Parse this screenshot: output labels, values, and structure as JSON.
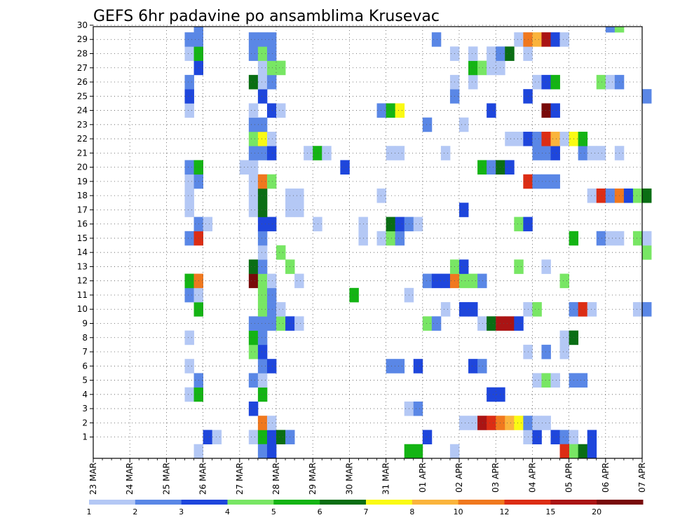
{
  "chart_data": {
    "type": "heatmap",
    "title": "GEFS 6hr padavine po ansamblima Krusevac",
    "xlabel": "",
    "ylabel": "",
    "x_ticks": [
      "23 MAR",
      "24 MAR",
      "25 MAR",
      "26 MAR",
      "27 MAR",
      "28 MAR",
      "29 MAR",
      "30 MAR",
      "31 MAR",
      "01 APR",
      "02 APR",
      "03 APR",
      "04 APR",
      "05 APR",
      "06 APR",
      "07 APR"
    ],
    "x_start": "2024-03-23 00Z",
    "x_step_hours": 6,
    "y_ticks": [
      1,
      2,
      3,
      4,
      5,
      6,
      7,
      8,
      9,
      10,
      11,
      12,
      13,
      14,
      15,
      16,
      17,
      18,
      19,
      20,
      21,
      22,
      23,
      24,
      25,
      26,
      27,
      28,
      29,
      30
    ],
    "grid": true,
    "colorbar": {
      "labels": [
        "1",
        "2",
        "3",
        "4",
        "5",
        "6",
        "7",
        "8",
        "10",
        "12",
        "15",
        "20"
      ],
      "colors": [
        "#b4c8f5",
        "#5a87e6",
        "#1e46dc",
        "#78e664",
        "#14b414",
        "#0a6e14",
        "#fafa14",
        "#fab43c",
        "#f0781e",
        "#dc2d14",
        "#aa1414",
        "#780a0a"
      ]
    },
    "cells": [
      [
        1,
        12,
        3
      ],
      [
        1,
        13,
        1
      ],
      [
        1,
        17,
        1
      ],
      [
        1,
        18,
        5
      ],
      [
        1,
        19,
        3
      ],
      [
        1,
        20,
        6
      ],
      [
        1,
        21,
        2
      ],
      [
        1,
        36,
        3
      ],
      [
        1,
        47,
        1
      ],
      [
        1,
        48,
        3
      ],
      [
        1,
        50,
        3
      ],
      [
        1,
        51,
        2
      ],
      [
        1,
        52,
        1
      ],
      [
        1,
        54,
        3
      ],
      [
        2,
        18,
        9
      ],
      [
        2,
        19,
        1
      ],
      [
        2,
        40,
        1
      ],
      [
        2,
        41,
        1
      ],
      [
        2,
        42,
        11
      ],
      [
        2,
        43,
        10
      ],
      [
        2,
        44,
        9
      ],
      [
        2,
        45,
        8
      ],
      [
        2,
        46,
        7
      ],
      [
        2,
        47,
        2
      ],
      [
        2,
        48,
        1
      ],
      [
        2,
        49,
        1
      ],
      [
        3,
        17,
        3
      ],
      [
        3,
        34,
        1
      ],
      [
        3,
        35,
        2
      ],
      [
        4,
        10,
        1
      ],
      [
        4,
        11,
        5
      ],
      [
        4,
        18,
        5
      ],
      [
        4,
        43,
        3
      ],
      [
        4,
        44,
        3
      ],
      [
        5,
        11,
        2
      ],
      [
        5,
        17,
        2
      ],
      [
        5,
        18,
        1
      ],
      [
        5,
        48,
        1
      ],
      [
        5,
        49,
        4
      ],
      [
        5,
        50,
        1
      ],
      [
        5,
        52,
        2
      ],
      [
        5,
        53,
        2
      ],
      [
        6,
        10,
        1
      ],
      [
        6,
        18,
        2
      ],
      [
        6,
        19,
        3
      ],
      [
        6,
        32,
        2
      ],
      [
        6,
        33,
        2
      ],
      [
        6,
        35,
        3
      ],
      [
        6,
        41,
        3
      ],
      [
        6,
        42,
        2
      ],
      [
        7,
        17,
        4
      ],
      [
        7,
        18,
        3
      ],
      [
        7,
        47,
        1
      ],
      [
        7,
        49,
        2
      ],
      [
        7,
        51,
        1
      ],
      [
        8,
        10,
        1
      ],
      [
        8,
        17,
        5
      ],
      [
        8,
        18,
        2
      ],
      [
        8,
        51,
        1
      ],
      [
        8,
        52,
        6
      ],
      [
        9,
        17,
        2
      ],
      [
        9,
        18,
        2
      ],
      [
        9,
        19,
        2
      ],
      [
        9,
        20,
        4
      ],
      [
        9,
        21,
        3
      ],
      [
        9,
        22,
        1
      ],
      [
        9,
        36,
        4
      ],
      [
        9,
        37,
        2
      ],
      [
        9,
        42,
        1
      ],
      [
        9,
        43,
        6
      ],
      [
        9,
        44,
        11
      ],
      [
        9,
        45,
        11
      ],
      [
        9,
        46,
        3
      ],
      [
        10,
        11,
        5
      ],
      [
        10,
        18,
        4
      ],
      [
        10,
        19,
        2
      ],
      [
        10,
        20,
        1
      ],
      [
        10,
        38,
        1
      ],
      [
        10,
        40,
        3
      ],
      [
        10,
        41,
        3
      ],
      [
        10,
        47,
        1
      ],
      [
        10,
        48,
        4
      ],
      [
        10,
        52,
        2
      ],
      [
        10,
        53,
        10
      ],
      [
        10,
        54,
        1
      ],
      [
        10,
        59,
        1
      ],
      [
        10,
        60,
        2
      ],
      [
        11,
        10,
        2
      ],
      [
        11,
        11,
        1
      ],
      [
        11,
        18,
        4
      ],
      [
        11,
        19,
        2
      ],
      [
        11,
        28,
        5
      ],
      [
        11,
        34,
        1
      ],
      [
        12,
        10,
        5
      ],
      [
        12,
        11,
        9
      ],
      [
        12,
        17,
        12
      ],
      [
        12,
        18,
        4
      ],
      [
        12,
        19,
        1
      ],
      [
        12,
        22,
        1
      ],
      [
        12,
        36,
        2
      ],
      [
        12,
        37,
        3
      ],
      [
        12,
        38,
        3
      ],
      [
        12,
        39,
        9
      ],
      [
        12,
        40,
        4
      ],
      [
        12,
        41,
        4
      ],
      [
        12,
        42,
        2
      ],
      [
        12,
        51,
        4
      ],
      [
        13,
        17,
        6
      ],
      [
        13,
        18,
        2
      ],
      [
        13,
        21,
        4
      ],
      [
        13,
        39,
        4
      ],
      [
        13,
        40,
        3
      ],
      [
        13,
        46,
        4
      ],
      [
        13,
        49,
        1
      ],
      [
        14,
        18,
        1
      ],
      [
        14,
        20,
        4
      ],
      [
        14,
        60,
        4
      ],
      [
        15,
        10,
        2
      ],
      [
        15,
        11,
        10
      ],
      [
        15,
        18,
        2
      ],
      [
        15,
        29,
        1
      ],
      [
        15,
        31,
        1
      ],
      [
        15,
        32,
        4
      ],
      [
        15,
        33,
        2
      ],
      [
        15,
        52,
        5
      ],
      [
        15,
        55,
        2
      ],
      [
        15,
        56,
        1
      ],
      [
        15,
        57,
        1
      ],
      [
        15,
        59,
        4
      ],
      [
        15,
        60,
        1
      ],
      [
        16,
        11,
        2
      ],
      [
        16,
        12,
        1
      ],
      [
        16,
        18,
        3
      ],
      [
        16,
        19,
        3
      ],
      [
        16,
        24,
        1
      ],
      [
        16,
        29,
        1
      ],
      [
        16,
        32,
        6
      ],
      [
        16,
        33,
        3
      ],
      [
        16,
        34,
        2
      ],
      [
        16,
        35,
        1
      ],
      [
        16,
        46,
        4
      ],
      [
        16,
        47,
        3
      ],
      [
        17,
        10,
        1
      ],
      [
        17,
        17,
        1
      ],
      [
        17,
        18,
        6
      ],
      [
        17,
        21,
        1
      ],
      [
        17,
        22,
        1
      ],
      [
        17,
        40,
        3
      ],
      [
        18,
        10,
        1
      ],
      [
        18,
        17,
        1
      ],
      [
        18,
        18,
        6
      ],
      [
        18,
        21,
        1
      ],
      [
        18,
        22,
        1
      ],
      [
        18,
        31,
        1
      ],
      [
        18,
        54,
        1
      ],
      [
        18,
        55,
        10
      ],
      [
        18,
        56,
        2
      ],
      [
        18,
        57,
        9
      ],
      [
        18,
        58,
        3
      ],
      [
        18,
        59,
        4
      ],
      [
        18,
        60,
        6
      ],
      [
        19,
        10,
        1
      ],
      [
        19,
        11,
        2
      ],
      [
        19,
        17,
        1
      ],
      [
        19,
        18,
        9
      ],
      [
        19,
        19,
        4
      ],
      [
        19,
        47,
        10
      ],
      [
        19,
        48,
        2
      ],
      [
        19,
        49,
        2
      ],
      [
        19,
        50,
        2
      ],
      [
        20,
        10,
        2
      ],
      [
        20,
        11,
        5
      ],
      [
        20,
        16,
        1
      ],
      [
        20,
        17,
        1
      ],
      [
        20,
        27,
        3
      ],
      [
        20,
        42,
        5
      ],
      [
        20,
        43,
        2
      ],
      [
        20,
        44,
        6
      ],
      [
        20,
        45,
        3
      ],
      [
        21,
        17,
        2
      ],
      [
        21,
        18,
        2
      ],
      [
        21,
        19,
        3
      ],
      [
        21,
        23,
        1
      ],
      [
        21,
        24,
        5
      ],
      [
        21,
        25,
        1
      ],
      [
        21,
        32,
        1
      ],
      [
        21,
        33,
        1
      ],
      [
        21,
        38,
        1
      ],
      [
        21,
        48,
        2
      ],
      [
        21,
        49,
        2
      ],
      [
        21,
        50,
        3
      ],
      [
        21,
        53,
        2
      ],
      [
        21,
        54,
        1
      ],
      [
        21,
        55,
        1
      ],
      [
        21,
        57,
        1
      ],
      [
        22,
        17,
        4
      ],
      [
        22,
        18,
        7
      ],
      [
        22,
        19,
        1
      ],
      [
        22,
        45,
        1
      ],
      [
        22,
        46,
        1
      ],
      [
        22,
        47,
        3
      ],
      [
        22,
        48,
        2
      ],
      [
        22,
        49,
        10
      ],
      [
        22,
        50,
        8
      ],
      [
        22,
        51,
        1
      ],
      [
        22,
        52,
        7
      ],
      [
        22,
        53,
        5
      ],
      [
        23,
        17,
        2
      ],
      [
        23,
        18,
        2
      ],
      [
        23,
        36,
        2
      ],
      [
        23,
        40,
        1
      ],
      [
        24,
        10,
        1
      ],
      [
        24,
        17,
        1
      ],
      [
        24,
        19,
        3
      ],
      [
        24,
        20,
        1
      ],
      [
        24,
        31,
        2
      ],
      [
        24,
        32,
        5
      ],
      [
        24,
        33,
        7
      ],
      [
        24,
        43,
        3
      ],
      [
        24,
        49,
        12
      ],
      [
        24,
        50,
        3
      ],
      [
        25,
        10,
        3
      ],
      [
        25,
        18,
        3
      ],
      [
        25,
        39,
        2
      ],
      [
        25,
        47,
        3
      ],
      [
        25,
        60,
        2
      ],
      [
        26,
        10,
        2
      ],
      [
        26,
        17,
        6
      ],
      [
        26,
        18,
        1
      ],
      [
        26,
        19,
        2
      ],
      [
        26,
        39,
        1
      ],
      [
        26,
        41,
        1
      ],
      [
        26,
        48,
        1
      ],
      [
        26,
        49,
        3
      ],
      [
        26,
        50,
        5
      ],
      [
        26,
        55,
        4
      ],
      [
        26,
        56,
        1
      ],
      [
        26,
        57,
        2
      ],
      [
        27,
        11,
        3
      ],
      [
        27,
        18,
        1
      ],
      [
        27,
        19,
        4
      ],
      [
        27,
        20,
        4
      ],
      [
        27,
        41,
        5
      ],
      [
        27,
        42,
        4
      ],
      [
        27,
        43,
        1
      ],
      [
        27,
        44,
        1
      ],
      [
        28,
        10,
        1
      ],
      [
        28,
        11,
        5
      ],
      [
        28,
        17,
        2
      ],
      [
        28,
        18,
        4
      ],
      [
        28,
        19,
        2
      ],
      [
        28,
        39,
        1
      ],
      [
        28,
        41,
        1
      ],
      [
        28,
        43,
        1
      ],
      [
        28,
        44,
        2
      ],
      [
        28,
        45,
        6
      ],
      [
        28,
        47,
        1
      ],
      [
        29,
        10,
        2
      ],
      [
        29,
        11,
        2
      ],
      [
        29,
        17,
        2
      ],
      [
        29,
        18,
        2
      ],
      [
        29,
        19,
        2
      ],
      [
        29,
        37,
        2
      ],
      [
        29,
        46,
        1
      ],
      [
        29,
        47,
        9
      ],
      [
        29,
        48,
        8
      ],
      [
        29,
        49,
        11
      ],
      [
        29,
        50,
        3
      ],
      [
        29,
        51,
        1
      ],
      [
        30,
        11,
        2
      ],
      [
        30,
        56,
        2
      ],
      [
        30,
        57,
        4
      ],
      [
        0,
        18,
        2
      ],
      [
        0,
        19,
        3
      ],
      [
        0,
        11,
        1
      ],
      [
        0,
        39,
        1
      ],
      [
        0,
        34,
        5
      ],
      [
        0,
        35,
        5
      ],
      [
        0,
        52,
        4
      ],
      [
        0,
        51,
        10
      ],
      [
        0,
        53,
        6
      ],
      [
        0,
        54,
        3
      ]
    ]
  }
}
